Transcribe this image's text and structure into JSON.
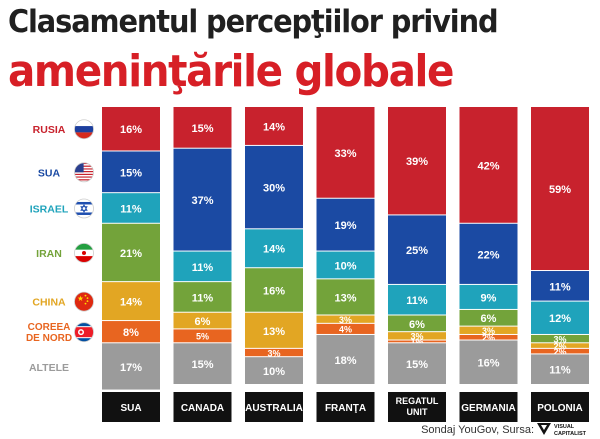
{
  "title_line1": "Clasamentul percepţiilor privind",
  "title_line2": "ameninţările globale",
  "source": "Sondaj YouGov, Sursa:",
  "logo_text": "VISUAL CAPITALIST",
  "chart_data": {
    "type": "bar",
    "stacked": true,
    "normalized_percent": true,
    "categories": [
      "SUA",
      "CANADA",
      "AUSTRALIA",
      "FRANŢA",
      "REGATUL UNIT",
      "GERMANIA",
      "POLONIA"
    ],
    "series": [
      {
        "name": "RUSIA",
        "color": "#c8222d",
        "flag": "russia-flag-icon",
        "values": [
          16,
          15,
          14,
          33,
          39,
          42,
          59
        ]
      },
      {
        "name": "SUA",
        "color": "#1b4aa3",
        "flag": "usa-flag-icon",
        "values": [
          15,
          37,
          30,
          19,
          25,
          22,
          11
        ]
      },
      {
        "name": "ISRAEL",
        "color": "#1fa3bb",
        "flag": "israel-flag-icon",
        "values": [
          11,
          11,
          14,
          10,
          11,
          9,
          12
        ]
      },
      {
        "name": "IRAN",
        "color": "#73a33a",
        "flag": "iran-flag-icon",
        "values": [
          21,
          11,
          16,
          13,
          6,
          6,
          3
        ]
      },
      {
        "name": "CHINA",
        "color": "#e2a623",
        "flag": "china-flag-icon",
        "values": [
          14,
          6,
          13,
          3,
          3,
          3,
          2
        ]
      },
      {
        "name": "COREEA DE NORD",
        "color": "#e86520",
        "flag": "north-korea-flag-icon",
        "values": [
          8,
          5,
          3,
          4,
          1,
          2,
          2
        ]
      },
      {
        "name": "ALTELE",
        "color": "#9b9b9b",
        "flag": null,
        "values": [
          17,
          15,
          10,
          18,
          15,
          16,
          11
        ]
      }
    ],
    "value_suffix": "%",
    "legend_text_colors": [
      "#c8222d",
      "#1b4aa3",
      "#1fa3bb",
      "#73a33a",
      "#e2a623",
      "#e86520",
      "#9b9b9b"
    ]
  }
}
